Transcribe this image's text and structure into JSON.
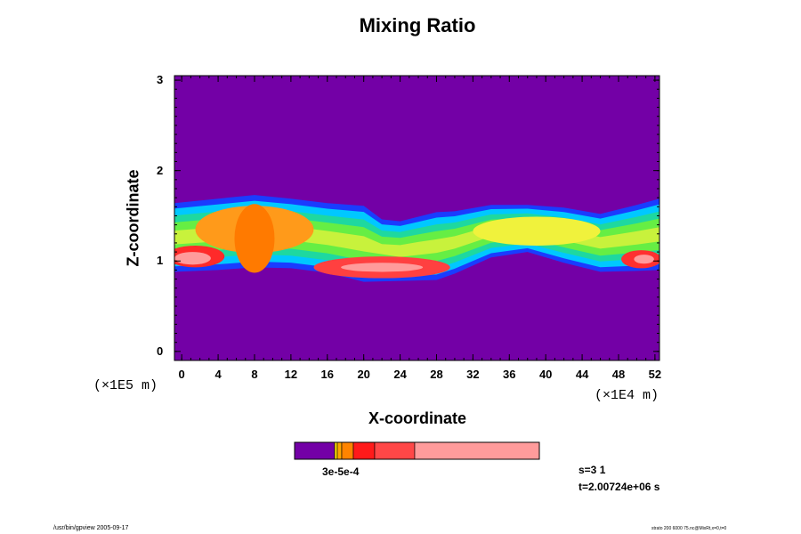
{
  "chart_data": {
    "type": "heatmap",
    "title": "Mixing Ratio",
    "xlabel": "X-coordinate",
    "ylabel": "Z-coordinate",
    "x_ticks": [
      "0",
      "4",
      "8",
      "12",
      "16",
      "20",
      "24",
      "28",
      "32",
      "36",
      "40",
      "44",
      "48",
      "52"
    ],
    "y_ticks": [
      "0",
      "1",
      "2",
      "3"
    ],
    "x_scale": "(×1E4 m)",
    "y_scale": "(×1E5 m)",
    "xlim": [
      -0.8,
      52.5
    ],
    "ylim": [
      -0.1,
      3.05
    ],
    "colorbar_label": "3e-5e-4",
    "colorbar_colors": [
      "#7300a6",
      "#ffe000",
      "#ffa500",
      "#ff8400",
      "#ff1a1a",
      "#ff4747",
      "#ff9b9b"
    ],
    "band_upper": [
      {
        "x": -0.8,
        "z": 1.64
      },
      {
        "x": 4,
        "z": 1.69
      },
      {
        "x": 8,
        "z": 1.73
      },
      {
        "x": 12,
        "z": 1.69
      },
      {
        "x": 16,
        "z": 1.64
      },
      {
        "x": 20,
        "z": 1.61
      },
      {
        "x": 22,
        "z": 1.46
      },
      {
        "x": 24,
        "z": 1.44
      },
      {
        "x": 26,
        "z": 1.49
      },
      {
        "x": 28,
        "z": 1.54
      },
      {
        "x": 30,
        "z": 1.55
      },
      {
        "x": 34,
        "z": 1.62
      },
      {
        "x": 38,
        "z": 1.62
      },
      {
        "x": 42,
        "z": 1.59
      },
      {
        "x": 46,
        "z": 1.52
      },
      {
        "x": 50,
        "z": 1.62
      },
      {
        "x": 52.5,
        "z": 1.69
      }
    ],
    "band_lower": [
      {
        "x": -0.8,
        "z": 0.88
      },
      {
        "x": 4,
        "z": 0.9
      },
      {
        "x": 8,
        "z": 0.93
      },
      {
        "x": 12,
        "z": 0.92
      },
      {
        "x": 16,
        "z": 0.87
      },
      {
        "x": 20,
        "z": 0.77
      },
      {
        "x": 24,
        "z": 0.78
      },
      {
        "x": 28,
        "z": 0.79
      },
      {
        "x": 30,
        "z": 0.86
      },
      {
        "x": 34,
        "z": 1.04
      },
      {
        "x": 38,
        "z": 1.1
      },
      {
        "x": 42,
        "z": 0.98
      },
      {
        "x": 46,
        "z": 0.88
      },
      {
        "x": 50,
        "z": 0.89
      },
      {
        "x": 52.5,
        "z": 0.9
      }
    ]
  },
  "run_info": {
    "step": "s=3 1",
    "time": "t=2.00724e+06 s"
  },
  "footer": {
    "left": "/usr/bin/gpview 2005-09-17",
    "right": "strato 200 6000 75.nc@MixRt,x=0,t=0"
  }
}
